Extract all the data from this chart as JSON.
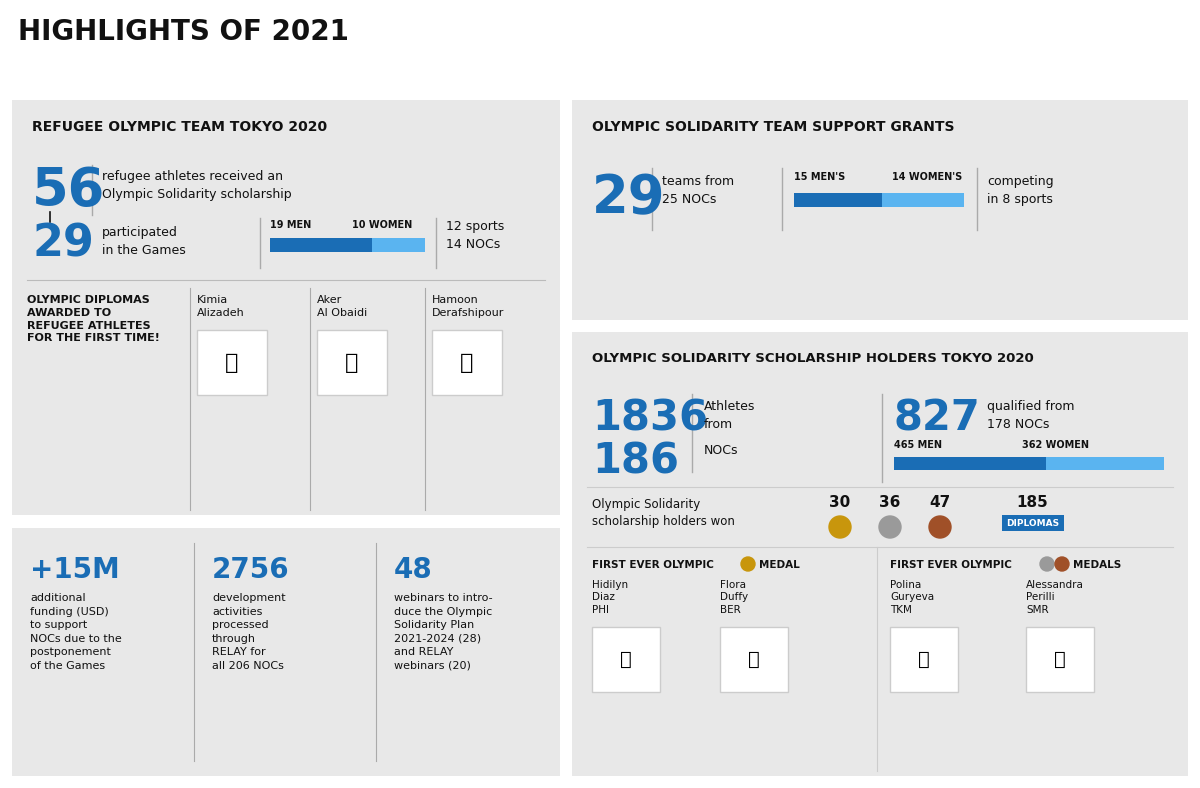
{
  "title": "HIGHLIGHTS OF 2021",
  "bg_color": "#ffffff",
  "panel_color": "#e8e8e8",
  "blue_dark": "#1a6db5",
  "blue_light": "#5ab4f0",
  "text_dark": "#111111",
  "refugee_title": "REFUGEE OLYMPIC TEAM TOKYO 2020",
  "refugee_56_text": "refugee athletes received an\nOlympic Solidarity scholarship",
  "refugee_29_text": "participated\nin the Games",
  "refugee_men_label": "19 MEN",
  "refugee_women_label": "10 WOMEN",
  "refugee_sports_text": "12 sports\n14 NOCs",
  "refugee_men_val": 19,
  "refugee_women_val": 10,
  "diploma_title": "OLYMPIC DIPLOMAS\nAWARDED TO\nREFUGEE ATHLETES\nFOR THE FIRST TIME!",
  "diploma_names": [
    "Kimia\nAlizadeh",
    "Aker\nAl Obaidi",
    "Hamoon\nDerafshipour"
  ],
  "solidarity_title": "OLYMPIC SOLIDARITY TEAM SUPPORT GRANTS",
  "solidarity_29_text": "teams from\n25 NOCs",
  "solidarity_men_label": "15 MEN'S",
  "solidarity_women_label": "14 WOMEN'S",
  "solidarity_sports_text": "competing\nin 8 sports",
  "solidarity_men_val": 15,
  "solidarity_women_val": 14,
  "scholarship_title": "OLYMPIC SOLIDARITY SCHOLARSHIP HOLDERS TOKYO 2020",
  "scholarship_athletes_text": "Athletes\nfrom",
  "scholarship_nocs_text": "NOCs",
  "scholarship_qualified_text": "qualified from\n178 NOCs",
  "scholarship_men_label": "465 MEN",
  "scholarship_women_label": "362 WOMEN",
  "scholarship_men_val": 465,
  "scholarship_women_val": 362,
  "scholarship_won_text": "Olympic Solidarity\nscholarship holders won",
  "medals_gold": "30",
  "medals_silver": "36",
  "medals_bronze": "47",
  "medals_diplomas": "185",
  "gold_color": "#c8960c",
  "silver_color": "#9a9a9a",
  "bronze_color": "#a05028",
  "diplomas_color": "#1a6db5",
  "first_medal_title": "FIRST EVER OLYMPIC",
  "first_medal_type": "MEDAL",
  "first_medal_athletes": [
    "Hidilyn\nDiaz\nPHI",
    "Flora\nDuffy\nBER"
  ],
  "first_medals_title": "FIRST EVER OLYMPIC",
  "first_medals_type": "MEDALS",
  "first_medals_athletes": [
    "Polina\nGuryeva\nTKM",
    "Alessandra\nPerilli\nSMR"
  ],
  "stat1_num": "+15M",
  "stat1_text": "additional\nfunding (USD)\nto support\nNOCs due to the\npostponement\nof the Games",
  "stat2_num": "2756",
  "stat2_text": "development\nactivities\nprocessed\nthrough\nRELAY for\nall 206 NOCs",
  "stat3_num": "48",
  "stat3_text": "webinars to intro-\nduce the Olympic\nSolidarity Plan\n2021-2024 (28)\nand RELAY\nwebinars (20)"
}
